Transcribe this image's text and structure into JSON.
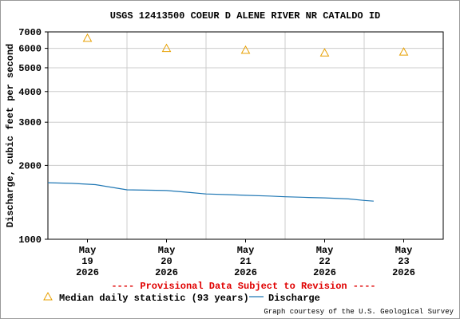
{
  "chart_data": {
    "type": "line",
    "title": "USGS 12413500 COEUR D ALENE RIVER NR CATALDO ID",
    "y_label": "Discharge, cubic feet per second",
    "annotation": "---- Provisional Data Subject to Revision ----",
    "credit": "Graph courtesy of the U.S. Geological Survey",
    "log_y": true,
    "ylim": [
      1000,
      7000
    ],
    "yticks": [
      1000,
      2000,
      3000,
      4000,
      5000,
      6000,
      7000
    ],
    "xlim": [
      19,
      24
    ],
    "xticks": [
      {
        "value": 19.5,
        "label": [
          "May",
          "19",
          "2026"
        ]
      },
      {
        "value": 20.5,
        "label": [
          "May",
          "20",
          "2026"
        ]
      },
      {
        "value": 21.5,
        "label": [
          "May",
          "21",
          "2026"
        ]
      },
      {
        "value": 22.5,
        "label": [
          "May",
          "22",
          "2026"
        ]
      },
      {
        "value": 23.5,
        "label": [
          "May",
          "23",
          "2026"
        ]
      }
    ],
    "xgrid": [
      20,
      21,
      22,
      23
    ],
    "series": [
      {
        "name": "Median daily statistic (93 years)",
        "color": "#e8a000",
        "marker": "triangle",
        "x": [
          19.5,
          20.5,
          21.5,
          22.5,
          23.5
        ],
        "values": [
          6600,
          6000,
          5900,
          5750,
          5800
        ]
      },
      {
        "name": "Discharge",
        "color": "#1f77b4",
        "marker": "line",
        "x": [
          19.0,
          19.3,
          19.6,
          19.9,
          20.0,
          20.3,
          20.5,
          20.8,
          21.0,
          21.3,
          21.5,
          21.8,
          22.0,
          22.3,
          22.5,
          22.8,
          23.0,
          23.12
        ],
        "values": [
          1700,
          1690,
          1670,
          1610,
          1590,
          1585,
          1580,
          1550,
          1530,
          1520,
          1510,
          1500,
          1490,
          1480,
          1475,
          1460,
          1440,
          1430
        ]
      }
    ]
  }
}
